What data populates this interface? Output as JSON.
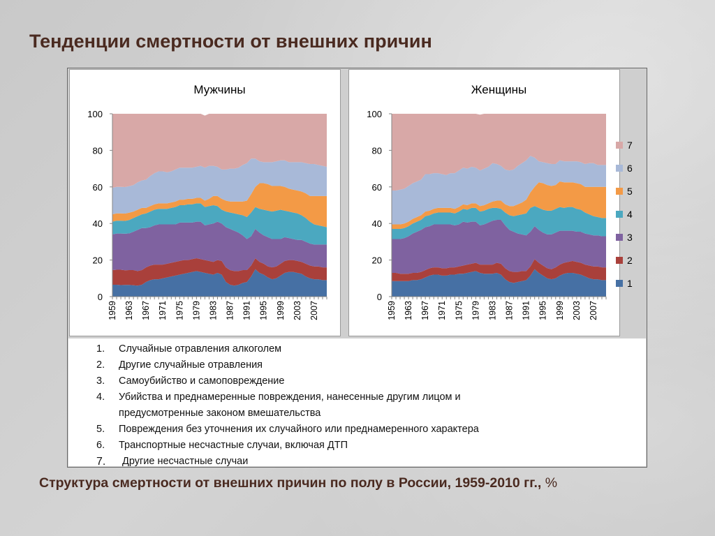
{
  "page": {
    "title": "Тенденции смертности от внешних причин",
    "caption_main": "Структура смертности от внешних причин по полу в России, 1959-2010 гг.,",
    "caption_unit": "%"
  },
  "legend_items": [
    {
      "num": "1.",
      "text": "Случайные отравления алкоголем"
    },
    {
      "num": "2.",
      "text": "Другие случайные отравления"
    },
    {
      "num": "3.",
      "text": "Самоубийство и самоповреждение"
    },
    {
      "num": "4.",
      "text": "Убийства и преднамеренные повреждения, нанесенные другим лицом и предусмотренные законом вмешательства"
    },
    {
      "num": "5.",
      "text": "Повреждения без уточнения их случайного или преднамеренного характера"
    },
    {
      "num": "6.",
      "text": "Транспортные несчастные случаи, включая ДТП"
    },
    {
      "num": "7.",
      "text": "Другие несчастные случаи"
    }
  ],
  "colors": {
    "1": "#4670a4",
    "2": "#a9403b",
    "3": "#7f62a0",
    "4": "#4ba8c0",
    "5": "#f39a46",
    "6": "#a8b9d8",
    "7": "#d8a8a7"
  },
  "chart_data": [
    {
      "type": "area",
      "stacked": true,
      "title": "Мужчины",
      "ylim": [
        0,
        100
      ],
      "yticks": [
        "0",
        "20",
        "40",
        "60",
        "80",
        "100"
      ],
      "xtick_labels": [
        "1959",
        "1963",
        "1967",
        "1971",
        "1975",
        "1979",
        "1983",
        "1987",
        "1991",
        "1995",
        "1999",
        "2003",
        "2007"
      ],
      "x": [
        1959,
        1960,
        1961,
        1962,
        1963,
        1964,
        1965,
        1966,
        1967,
        1968,
        1969,
        1970,
        1971,
        1972,
        1973,
        1974,
        1975,
        1976,
        1977,
        1978,
        1979,
        1980,
        1981,
        1982,
        1983,
        1984,
        1985,
        1986,
        1987,
        1988,
        1989,
        1990,
        1991,
        1992,
        1993,
        1994,
        1995,
        1996,
        1997,
        1998,
        1999,
        2000,
        2001,
        2002,
        2003,
        2004,
        2005,
        2006,
        2007,
        2008,
        2009,
        2010
      ],
      "series": [
        {
          "name": "1",
          "values": [
            6.5,
            6.5,
            6.3,
            6.4,
            6.4,
            6.2,
            6,
            6.5,
            8,
            9,
            9.5,
            9.5,
            10,
            10.5,
            11,
            11.5,
            12,
            12.5,
            13,
            13.5,
            14,
            13.5,
            13,
            12.5,
            12,
            13,
            12,
            8,
            6.5,
            6,
            6.5,
            7.5,
            8,
            11,
            15,
            13,
            12,
            10.5,
            9.5,
            10,
            11.5,
            13,
            13.5,
            13.5,
            13,
            12.5,
            11,
            10,
            9.5,
            9.5,
            9,
            9
          ]
        },
        {
          "name": "2",
          "values": [
            8,
            8.2,
            8.4,
            8,
            8.1,
            8.3,
            8,
            8,
            8,
            8,
            8,
            8,
            7.5,
            7.5,
            7.5,
            7.5,
            7.5,
            7.5,
            7,
            7,
            7,
            7,
            7,
            7,
            7,
            7,
            7.5,
            8,
            8,
            8,
            7.5,
            7,
            6.5,
            6,
            6,
            6,
            6,
            6,
            6.5,
            6.5,
            6.5,
            6.5,
            6.5,
            6.5,
            6.5,
            6.5,
            7,
            7,
            7,
            7,
            7,
            7
          ]
        },
        {
          "name": "3",
          "values": [
            19.5,
            19.8,
            19.8,
            20,
            20.1,
            21,
            22.5,
            23,
            21.5,
            21,
            21.5,
            22,
            22,
            21.5,
            21,
            20.5,
            21,
            20.5,
            20.5,
            20,
            20,
            20.5,
            19,
            20,
            21,
            21,
            20.5,
            22,
            22.5,
            22,
            21,
            19,
            17,
            16,
            16,
            16,
            15.5,
            16,
            15.5,
            15,
            13.5,
            13,
            12,
            11.5,
            11.5,
            12,
            12,
            12,
            12,
            12,
            12.5,
            12.5
          ]
        },
        {
          "name": "4",
          "values": [
            7,
            7,
            7,
            7,
            7.3,
            7.5,
            7.5,
            7.5,
            8,
            8.5,
            8.5,
            8.5,
            8.5,
            8.5,
            9,
            9.5,
            9.5,
            9.5,
            10,
            10,
            10,
            10,
            10,
            10,
            10,
            8.5,
            7.5,
            8.5,
            9,
            9.5,
            10,
            11,
            12,
            13,
            12,
            13,
            14,
            14.5,
            15,
            15.5,
            16,
            14.5,
            14.5,
            14.5,
            14.5,
            13.5,
            13,
            12,
            11,
            10.5,
            10,
            9.5
          ]
        },
        {
          "name": "5",
          "values": [
            4,
            4,
            4,
            4,
            4,
            3.5,
            3.5,
            3.5,
            3,
            3,
            3,
            3,
            3,
            3,
            3,
            3,
            3,
            3,
            3,
            3,
            3,
            3,
            3.5,
            4,
            5,
            5.5,
            6,
            6,
            6,
            6.5,
            7,
            7.5,
            9,
            10,
            11,
            14,
            14.5,
            14.5,
            14,
            13.5,
            13,
            13,
            12.5,
            12.5,
            12.5,
            13,
            13.5,
            14,
            15.5,
            16,
            16.5,
            17
          ]
        },
        {
          "name": "6",
          "values": [
            14.5,
            14.5,
            14.5,
            14.5,
            14.5,
            14.5,
            15,
            15,
            15.5,
            16.5,
            17,
            17.5,
            17.5,
            17,
            17,
            17.5,
            17.5,
            17.5,
            17,
            17,
            17,
            17.5,
            18,
            18,
            16.5,
            16,
            16,
            17,
            18,
            18,
            18.5,
            20,
            20.5,
            19.5,
            15.5,
            12,
            11.5,
            12,
            13,
            13.5,
            14,
            14.5,
            14.5,
            15,
            15.5,
            16,
            16.5,
            17.5,
            17.5,
            17,
            16.5,
            16
          ]
        },
        {
          "name": "7",
          "values": [
            40.5,
            40,
            40,
            40.1,
            39.6,
            39,
            37.5,
            36.5,
            36,
            34,
            32.5,
            31.5,
            31.5,
            32,
            31.5,
            30.5,
            29.5,
            29.5,
            29.5,
            29.5,
            29,
            28.5,
            28.5,
            28.5,
            28.5,
            29,
            30.5,
            30.5,
            30,
            30,
            29.5,
            28,
            27,
            24.5,
            24.5,
            26,
            26.5,
            26.5,
            26.5,
            26,
            25.5,
            25.5,
            26.5,
            26.5,
            26.5,
            26.5,
            27,
            27.5,
            27.5,
            28,
            28.5,
            29
          ]
        }
      ]
    },
    {
      "type": "area",
      "stacked": true,
      "title": "Женщины",
      "ylim": [
        0,
        100
      ],
      "yticks": [
        "0",
        "20",
        "40",
        "60",
        "80",
        "100"
      ],
      "xtick_labels": [
        "1959",
        "1963",
        "1967",
        "1971",
        "1975",
        "1979",
        "1983",
        "1987",
        "1991",
        "1995",
        "1999",
        "2003",
        "2007"
      ],
      "x": [
        1959,
        1960,
        1961,
        1962,
        1963,
        1964,
        1965,
        1966,
        1967,
        1968,
        1969,
        1970,
        1971,
        1972,
        1973,
        1974,
        1975,
        1976,
        1977,
        1978,
        1979,
        1980,
        1981,
        1982,
        1983,
        1984,
        1985,
        1986,
        1987,
        1988,
        1989,
        1990,
        1991,
        1992,
        1993,
        1994,
        1995,
        1996,
        1997,
        1998,
        1999,
        2000,
        2001,
        2002,
        2003,
        2004,
        2005,
        2006,
        2007,
        2008,
        2009,
        2010
      ],
      "series": [
        {
          "name": "1",
          "values": [
            8.5,
            8.5,
            8.5,
            8.5,
            8.5,
            9,
            9,
            9.5,
            10.5,
            11.5,
            12,
            12,
            11.5,
            11.5,
            12,
            12,
            12.5,
            12.5,
            13,
            13.5,
            14,
            13,
            12.5,
            12.5,
            12.5,
            13,
            12,
            9.5,
            8,
            7.5,
            8,
            8.5,
            9,
            11.5,
            15,
            13,
            11.5,
            10,
            9.5,
            10,
            11.5,
            12.5,
            13,
            13,
            12.5,
            12,
            11,
            10,
            9.5,
            9.5,
            9,
            9
          ]
        },
        {
          "name": "2",
          "values": [
            4.5,
            4.5,
            4,
            4,
            4,
            4,
            4,
            4,
            4,
            4,
            4,
            4,
            4,
            4,
            4,
            4,
            4,
            4.5,
            4.5,
            4.5,
            4.5,
            4.5,
            5,
            5,
            5,
            5.5,
            6,
            6,
            6,
            6,
            5.5,
            5.5,
            5,
            5,
            5.5,
            5.5,
            5.5,
            5.5,
            5.5,
            6,
            6,
            6,
            6,
            6.5,
            6.5,
            6.5,
            6.5,
            7,
            7,
            7,
            7,
            7
          ]
        },
        {
          "name": "3",
          "values": [
            18.5,
            18.5,
            19,
            19.5,
            20.5,
            21.5,
            22.5,
            23,
            23.5,
            23,
            23.5,
            23.5,
            24,
            24,
            23.5,
            23,
            23,
            24,
            23,
            23,
            22.5,
            21.5,
            22,
            23,
            24,
            23.5,
            24,
            23.5,
            22.5,
            22,
            21,
            20,
            19.5,
            19,
            18,
            18,
            18,
            18.5,
            19,
            19,
            18.5,
            17.5,
            17,
            16.5,
            16.5,
            17,
            17,
            17,
            17,
            17,
            17,
            17
          ]
        },
        {
          "name": "4",
          "values": [
            5.5,
            5.5,
            5.5,
            5.5,
            5.5,
            5.5,
            5.5,
            5.5,
            6,
            6,
            6,
            6.5,
            6.5,
            6.5,
            6.5,
            6.5,
            7,
            7,
            7,
            7.5,
            7.5,
            7.5,
            7.5,
            7.5,
            7,
            6.5,
            6,
            7,
            8,
            8.5,
            10,
            11,
            12,
            13,
            11,
            12,
            12.5,
            13,
            13,
            13,
            13,
            12.5,
            13,
            13,
            12.5,
            12,
            11.5,
            11,
            10.5,
            10,
            10,
            10
          ]
        },
        {
          "name": "5",
          "values": [
            2.5,
            2.5,
            2.5,
            2.5,
            2.5,
            2.5,
            2.5,
            2.5,
            2.5,
            2.5,
            2.5,
            2.5,
            2.5,
            2.5,
            2.5,
            2.5,
            2.5,
            2.5,
            2.5,
            2.5,
            2.5,
            3,
            3,
            3,
            3.5,
            4,
            4.5,
            4.5,
            5,
            5.5,
            6,
            6.5,
            7.5,
            8.5,
            10.5,
            14,
            14.5,
            14,
            13.5,
            13,
            14,
            14,
            13.5,
            13.5,
            14,
            14,
            14,
            15,
            16,
            16.5,
            17,
            17
          ]
        },
        {
          "name": "6",
          "values": [
            18.5,
            18.5,
            19,
            19,
            19.5,
            19.5,
            19.5,
            19.5,
            20.5,
            20,
            19.5,
            19,
            18.5,
            18,
            19,
            19.5,
            20,
            20,
            20,
            20,
            19.5,
            19.5,
            20,
            20,
            21,
            20,
            19,
            19,
            19.5,
            20,
            21,
            21.5,
            21.5,
            20,
            16,
            11.5,
            11.5,
            12,
            12,
            11.5,
            11.5,
            11.5,
            11.5,
            11.5,
            12,
            12,
            12.5,
            13,
            13,
            12,
            12,
            12
          ]
        },
        {
          "name": "7",
          "values": [
            42,
            42,
            41.5,
            41,
            39.5,
            38,
            37,
            36,
            33,
            33,
            32.5,
            32.5,
            33,
            33.5,
            32.5,
            32.5,
            31,
            29.5,
            30,
            29,
            29.5,
            30.5,
            30,
            29,
            27,
            27.5,
            28.5,
            30.5,
            31,
            30.5,
            28.5,
            27,
            25.5,
            23,
            24,
            26,
            26.5,
            27,
            27.5,
            27.5,
            25.5,
            26,
            26,
            26,
            26,
            26.5,
            27.5,
            27,
            27,
            28,
            28,
            28
          ]
        }
      ],
      "legend": [
        "7",
        "6",
        "5",
        "4",
        "3",
        "2",
        "1"
      ],
      "legend_placement": "right"
    }
  ]
}
